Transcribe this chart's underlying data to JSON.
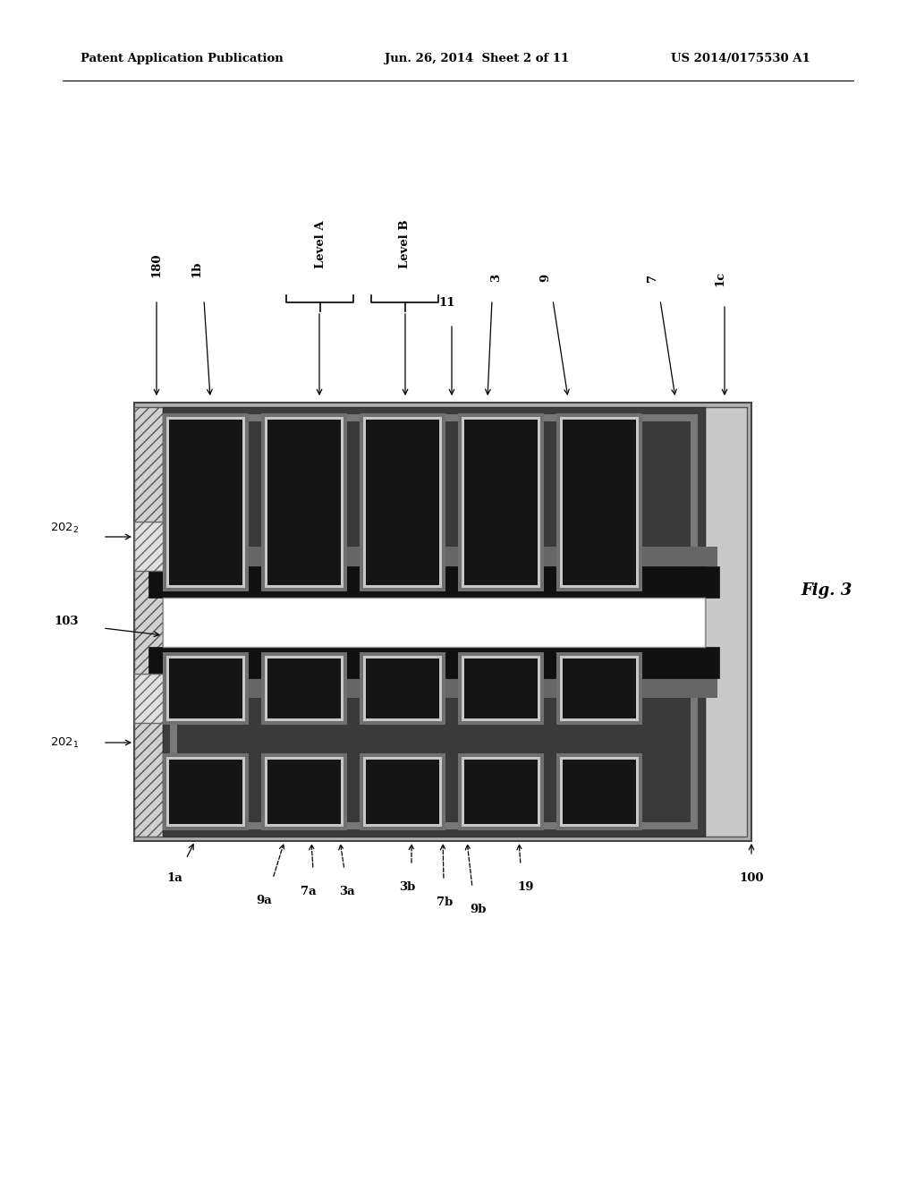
{
  "bg_color": "#ffffff",
  "header_left": "Patent Application Publication",
  "header_mid": "Jun. 26, 2014  Sheet 2 of 11",
  "header_right": "US 2014/0175530 A1",
  "fig_label": "Fig. 3"
}
